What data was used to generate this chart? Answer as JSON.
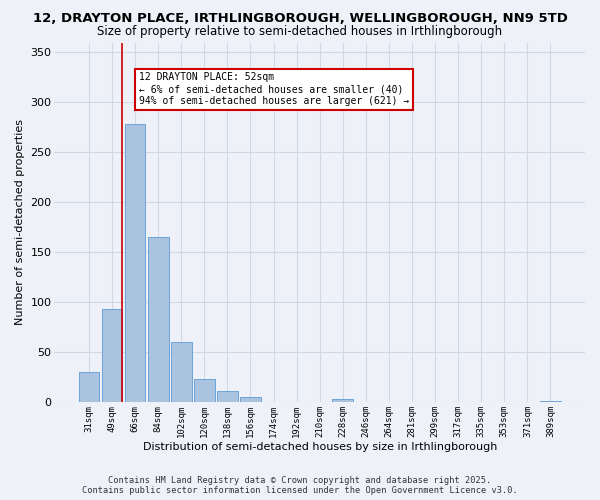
{
  "title_line1": "12, DRAYTON PLACE, IRTHLINGBOROUGH, WELLINGBOROUGH, NN9 5TD",
  "title_line2": "Size of property relative to semi-detached houses in Irthlingborough",
  "xlabel": "Distribution of semi-detached houses by size in Irthlingborough",
  "ylabel": "Number of semi-detached properties",
  "categories": [
    "31sqm",
    "49sqm",
    "66sqm",
    "84sqm",
    "102sqm",
    "120sqm",
    "138sqm",
    "156sqm",
    "174sqm",
    "192sqm",
    "210sqm",
    "228sqm",
    "246sqm",
    "264sqm",
    "281sqm",
    "299sqm",
    "317sqm",
    "335sqm",
    "353sqm",
    "371sqm",
    "389sqm"
  ],
  "values": [
    30,
    93,
    278,
    165,
    60,
    23,
    11,
    5,
    0,
    0,
    0,
    3,
    0,
    0,
    0,
    0,
    0,
    0,
    0,
    0,
    1
  ],
  "bar_color": "#aac4e0",
  "bar_edgecolor": "#5b9bd5",
  "annotation_text_line1": "12 DRAYTON PLACE: 52sqm",
  "annotation_text_line2": "← 6% of semi-detached houses are smaller (40)",
  "annotation_text_line3": "94% of semi-detached houses are larger (621) →",
  "annotation_box_color": "#ffffff",
  "annotation_box_edgecolor": "#cc0000",
  "vline_color": "#cc0000",
  "grid_color": "#d0d8e8",
  "background_color": "#eef2f8",
  "ylim": [
    0,
    360
  ],
  "yticks": [
    0,
    50,
    100,
    150,
    200,
    250,
    300,
    350
  ],
  "footer_line1": "Contains HM Land Registry data © Crown copyright and database right 2025.",
  "footer_line2": "Contains public sector information licensed under the Open Government Licence v3.0."
}
